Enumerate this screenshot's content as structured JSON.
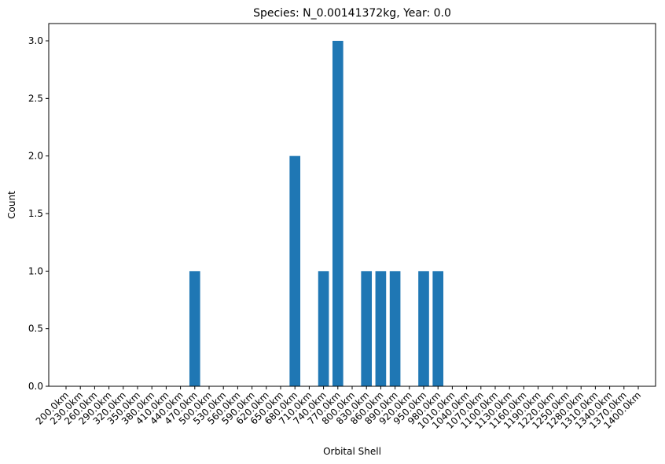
{
  "chart_data": {
    "type": "bar",
    "title": "Species: N_0.00141372kg, Year: 0.0",
    "xlabel": "Orbital Shell",
    "ylabel": "Count",
    "ylim": [
      0,
      3.15
    ],
    "yticks": [
      "0.0",
      "0.5",
      "1.0",
      "1.5",
      "2.0",
      "2.5",
      "3.0"
    ],
    "ytick_values": [
      0,
      0.5,
      1.0,
      1.5,
      2.0,
      2.5,
      3.0
    ],
    "categories": [
      "200.0km",
      "230.0km",
      "260.0km",
      "290.0km",
      "320.0km",
      "350.0km",
      "380.0km",
      "410.0km",
      "440.0km",
      "470.0km",
      "500.0km",
      "530.0km",
      "560.0km",
      "590.0km",
      "620.0km",
      "650.0km",
      "680.0km",
      "710.0km",
      "740.0km",
      "770.0km",
      "800.0km",
      "830.0km",
      "860.0km",
      "890.0km",
      "920.0km",
      "950.0km",
      "980.0km",
      "1010.0km",
      "1040.0km",
      "1070.0km",
      "1100.0km",
      "1130.0km",
      "1160.0km",
      "1190.0km",
      "1220.0km",
      "1250.0km",
      "1280.0km",
      "1310.0km",
      "1340.0km",
      "1370.0km",
      "1400.0km"
    ],
    "values": [
      0,
      0,
      0,
      0,
      0,
      0,
      0,
      0,
      0,
      1,
      0,
      0,
      0,
      0,
      0,
      0,
      2,
      0,
      1,
      3,
      0,
      1,
      1,
      1,
      0,
      1,
      1,
      0,
      0,
      0,
      0,
      0,
      0,
      0,
      0,
      0,
      0,
      0,
      0,
      0,
      0
    ],
    "bar_color": "#1f77b4",
    "grid": false
  }
}
